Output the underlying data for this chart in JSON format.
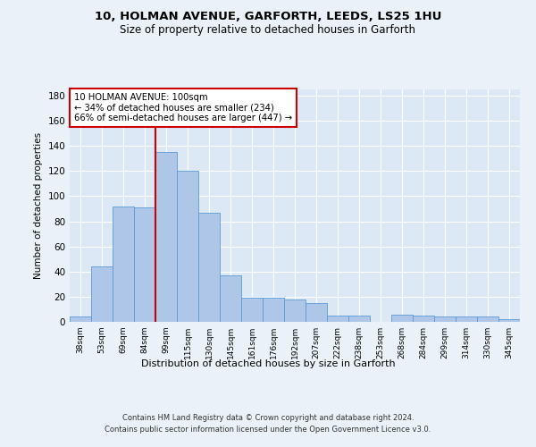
{
  "title1": "10, HOLMAN AVENUE, GARFORTH, LEEDS, LS25 1HU",
  "title2": "Size of property relative to detached houses in Garforth",
  "xlabel": "Distribution of detached houses by size in Garforth",
  "ylabel": "Number of detached properties",
  "categories": [
    "38sqm",
    "53sqm",
    "69sqm",
    "84sqm",
    "99sqm",
    "115sqm",
    "130sqm",
    "145sqm",
    "161sqm",
    "176sqm",
    "192sqm",
    "207sqm",
    "222sqm",
    "238sqm",
    "253sqm",
    "268sqm",
    "284sqm",
    "299sqm",
    "314sqm",
    "330sqm",
    "345sqm"
  ],
  "values": [
    4,
    44,
    92,
    91,
    135,
    120,
    87,
    37,
    19,
    19,
    18,
    15,
    5,
    5,
    0,
    6,
    5,
    4,
    4,
    4,
    2
  ],
  "bar_color": "#aec6e8",
  "bar_edge_color": "#5b9bd5",
  "figure_bg_color": "#eaf1f8",
  "plot_bg_color": "#dce8f5",
  "ylim": [
    0,
    185
  ],
  "yticks": [
    0,
    20,
    40,
    60,
    80,
    100,
    120,
    140,
    160,
    180
  ],
  "annotation_box_text": "10 HOLMAN AVENUE: 100sqm\n← 34% of detached houses are smaller (234)\n66% of semi-detached houses are larger (447) →",
  "property_bar_index": 4,
  "red_line_color": "#cc0000",
  "annotation_box_color": "#cc0000",
  "footer_line1": "Contains HM Land Registry data © Crown copyright and database right 2024.",
  "footer_line2": "Contains public sector information licensed under the Open Government Licence v3.0."
}
